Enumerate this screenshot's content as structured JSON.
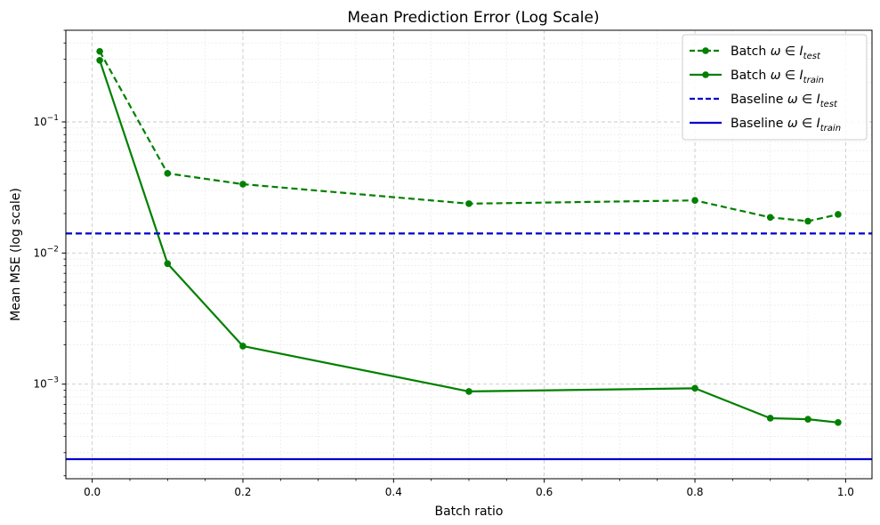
{
  "chart_data": {
    "type": "line",
    "title": "Mean Prediction Error (Log Scale)",
    "xlabel": "Batch ratio",
    "ylabel": "Mean MSE (log scale)",
    "xlim": [
      -0.035,
      1.035
    ],
    "ylim": [
      0.00019,
      0.5
    ],
    "yscale": "log",
    "grid": true,
    "legend_position": "top-right",
    "x_ticks": [
      0.0,
      0.2,
      0.4,
      0.6,
      0.8,
      1.0
    ],
    "x_tick_labels": [
      "0.0",
      "0.2",
      "0.4",
      "0.6",
      "0.8",
      "1.0"
    ],
    "y_ticks": [
      0.001,
      0.01,
      0.1
    ],
    "y_tick_labels": [
      {
        "base": "10",
        "exp": "−3"
      },
      {
        "base": "10",
        "exp": "−2"
      },
      {
        "base": "10",
        "exp": "−1"
      }
    ],
    "series": [
      {
        "name": "Batch ω ∈ I_test",
        "legend": {
          "prefix": "Batch ",
          "sym": "ω ∈ I",
          "sub": "test"
        },
        "color": "#008000",
        "style": "dashed",
        "marker": "circle",
        "x": [
          0.01,
          0.1,
          0.2,
          0.5,
          0.8,
          0.9,
          0.95,
          0.99
        ],
        "y": [
          0.345,
          0.0405,
          0.0335,
          0.0238,
          0.0252,
          0.0187,
          0.0175,
          0.0197
        ]
      },
      {
        "name": "Batch ω ∈ I_train",
        "legend": {
          "prefix": "Batch ",
          "sym": "ω ∈ I",
          "sub": "train"
        },
        "color": "#008000",
        "style": "solid",
        "marker": "circle",
        "x": [
          0.01,
          0.1,
          0.2,
          0.5,
          0.8,
          0.9,
          0.95,
          0.99
        ],
        "y": [
          0.295,
          0.0083,
          0.00195,
          0.00088,
          0.00093,
          0.00055,
          0.00054,
          0.00051
        ]
      },
      {
        "name": "Baseline ω ∈ I_test",
        "legend": {
          "prefix": "Baseline ",
          "sym": "ω ∈ I",
          "sub": "test"
        },
        "color": "#0000cc",
        "style": "dashed",
        "marker": "none",
        "hline": 0.0141
      },
      {
        "name": "Baseline ω ∈ I_train",
        "legend": {
          "prefix": "Baseline ",
          "sym": "ω ∈ I",
          "sub": "train"
        },
        "color": "#0000cc",
        "style": "solid",
        "marker": "none",
        "hline": 0.000268
      }
    ]
  }
}
